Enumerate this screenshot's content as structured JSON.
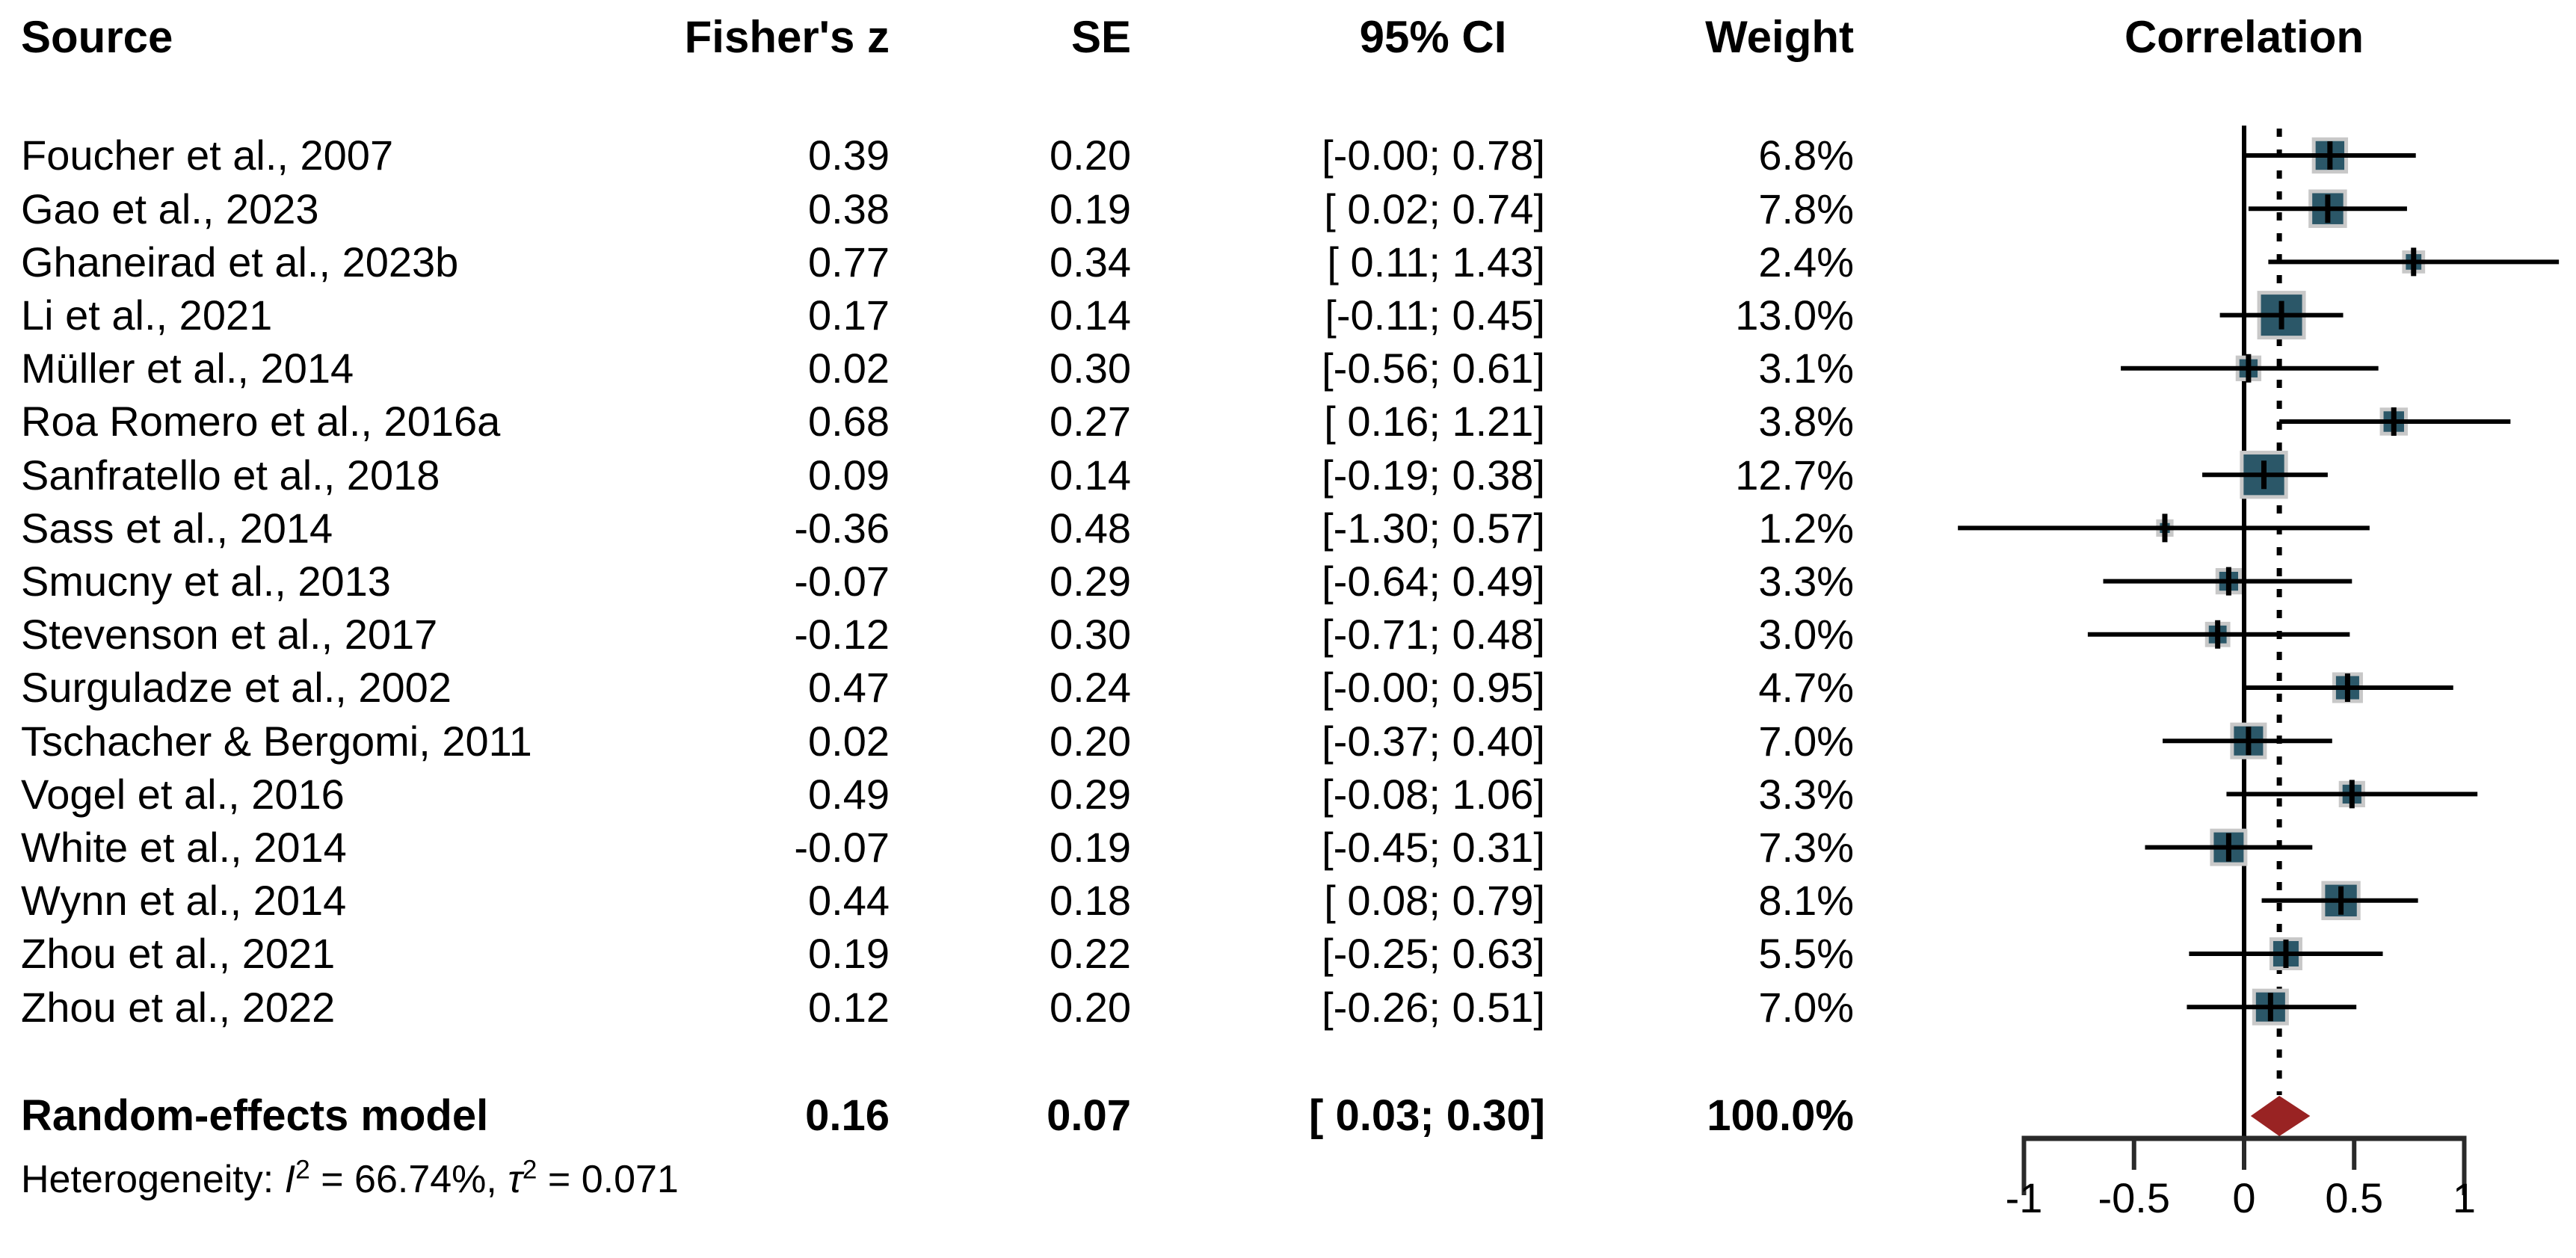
{
  "table": {
    "columns": {
      "source": "Source",
      "fishers_z": "Fisher's z",
      "se": "SE",
      "ci": "95% CI",
      "weight": "Weight",
      "plot": "Correlation"
    },
    "rows": [
      {
        "source": "Foucher et al., 2007",
        "fishers_z": "0.39",
        "se": "0.20",
        "ci": "[-0.00; 0.78]",
        "weight": "6.8%"
      },
      {
        "source": "Gao et al., 2023",
        "fishers_z": "0.38",
        "se": "0.19",
        "ci": "[ 0.02; 0.74]",
        "weight": "7.8%"
      },
      {
        "source": "Ghaneirad et al., 2023b",
        "fishers_z": "0.77",
        "se": "0.34",
        "ci": "[ 0.11; 1.43]",
        "weight": "2.4%"
      },
      {
        "source": "Li et al., 2021",
        "fishers_z": "0.17",
        "se": "0.14",
        "ci": "[-0.11; 0.45]",
        "weight": "13.0%"
      },
      {
        "source": "Müller et al., 2014",
        "fishers_z": "0.02",
        "se": "0.30",
        "ci": "[-0.56; 0.61]",
        "weight": "3.1%"
      },
      {
        "source": "Roa Romero et al., 2016a",
        "fishers_z": "0.68",
        "se": "0.27",
        "ci": "[ 0.16; 1.21]",
        "weight": "3.8%"
      },
      {
        "source": "Sanfratello et al., 2018",
        "fishers_z": "0.09",
        "se": "0.14",
        "ci": "[-0.19; 0.38]",
        "weight": "12.7%"
      },
      {
        "source": "Sass et al., 2014",
        "fishers_z": "-0.36",
        "se": "0.48",
        "ci": "[-1.30; 0.57]",
        "weight": "1.2%"
      },
      {
        "source": "Smucny et al., 2013",
        "fishers_z": "-0.07",
        "se": "0.29",
        "ci": "[-0.64; 0.49]",
        "weight": "3.3%"
      },
      {
        "source": "Stevenson et al., 2017",
        "fishers_z": "-0.12",
        "se": "0.30",
        "ci": "[-0.71; 0.48]",
        "weight": "3.0%"
      },
      {
        "source": "Surguladze et al., 2002",
        "fishers_z": "0.47",
        "se": "0.24",
        "ci": "[-0.00; 0.95]",
        "weight": "4.7%"
      },
      {
        "source": "Tschacher & Bergomi, 2011",
        "fishers_z": "0.02",
        "se": "0.20",
        "ci": "[-0.37; 0.40]",
        "weight": "7.0%"
      },
      {
        "source": "Vogel et al., 2016",
        "fishers_z": "0.49",
        "se": "0.29",
        "ci": "[-0.08; 1.06]",
        "weight": "3.3%"
      },
      {
        "source": "White et al., 2014",
        "fishers_z": "-0.07",
        "se": "0.19",
        "ci": "[-0.45; 0.31]",
        "weight": "7.3%"
      },
      {
        "source": "Wynn et al., 2014",
        "fishers_z": "0.44",
        "se": "0.18",
        "ci": "[ 0.08; 0.79]",
        "weight": "8.1%"
      },
      {
        "source": "Zhou et al., 2021",
        "fishers_z": "0.19",
        "se": "0.22",
        "ci": "[-0.25; 0.63]",
        "weight": "5.5%"
      },
      {
        "source": "Zhou et al., 2022",
        "fishers_z": "0.12",
        "se": "0.20",
        "ci": "[-0.26; 0.51]",
        "weight": "7.0%"
      }
    ],
    "summary": {
      "source": "Random-effects model",
      "fishers_z": "0.16",
      "se": "0.07",
      "ci": "[ 0.03; 0.30]",
      "weight": "100.0%"
    },
    "heterogeneity": {
      "prefix": "Heterogeneity: ",
      "i_sym": "I",
      "i_sup": "2",
      "mid": " = 66.74%, ",
      "tau_sym": "τ",
      "tau_sup": "2",
      "suffix": " = 0.071"
    }
  },
  "chart_data": {
    "type": "scatter",
    "subtype": "forest-plot",
    "title": "Correlation",
    "xlabel": "",
    "ylabel": "",
    "x_axis": {
      "range": [
        -1,
        1
      ],
      "ticks": [
        -1,
        -0.5,
        0,
        0.5,
        1
      ],
      "tick_labels": [
        "-1",
        "-0.5",
        "0",
        "0.5",
        "1"
      ]
    },
    "reference_line": 0,
    "pooled_estimate_line": 0.16,
    "studies": [
      {
        "label": "Foucher et al., 2007",
        "z": 0.39,
        "lo": -0.0,
        "hi": 0.78,
        "weight": 6.8
      },
      {
        "label": "Gao et al., 2023",
        "z": 0.38,
        "lo": 0.02,
        "hi": 0.74,
        "weight": 7.8
      },
      {
        "label": "Ghaneirad et al., 2023b",
        "z": 0.77,
        "lo": 0.11,
        "hi": 1.43,
        "weight": 2.4
      },
      {
        "label": "Li et al., 2021",
        "z": 0.17,
        "lo": -0.11,
        "hi": 0.45,
        "weight": 13.0
      },
      {
        "label": "Müller et al., 2014",
        "z": 0.02,
        "lo": -0.56,
        "hi": 0.61,
        "weight": 3.1
      },
      {
        "label": "Roa Romero et al., 2016a",
        "z": 0.68,
        "lo": 0.16,
        "hi": 1.21,
        "weight": 3.8
      },
      {
        "label": "Sanfratello et al., 2018",
        "z": 0.09,
        "lo": -0.19,
        "hi": 0.38,
        "weight": 12.7
      },
      {
        "label": "Sass et al., 2014",
        "z": -0.36,
        "lo": -1.3,
        "hi": 0.57,
        "weight": 1.2
      },
      {
        "label": "Smucny et al., 2013",
        "z": -0.07,
        "lo": -0.64,
        "hi": 0.49,
        "weight": 3.3
      },
      {
        "label": "Stevenson et al., 2017",
        "z": -0.12,
        "lo": -0.71,
        "hi": 0.48,
        "weight": 3.0
      },
      {
        "label": "Surguladze et al., 2002",
        "z": 0.47,
        "lo": -0.0,
        "hi": 0.95,
        "weight": 4.7
      },
      {
        "label": "Tschacher & Bergomi, 2011",
        "z": 0.02,
        "lo": -0.37,
        "hi": 0.4,
        "weight": 7.0
      },
      {
        "label": "Vogel et al., 2016",
        "z": 0.49,
        "lo": -0.08,
        "hi": 1.06,
        "weight": 3.3
      },
      {
        "label": "White et al., 2014",
        "z": -0.07,
        "lo": -0.45,
        "hi": 0.31,
        "weight": 7.3
      },
      {
        "label": "Wynn et al., 2014",
        "z": 0.44,
        "lo": 0.08,
        "hi": 0.79,
        "weight": 8.1
      },
      {
        "label": "Zhou et al., 2021",
        "z": 0.19,
        "lo": -0.25,
        "hi": 0.63,
        "weight": 5.5
      },
      {
        "label": "Zhou et al., 2022",
        "z": 0.12,
        "lo": -0.26,
        "hi": 0.51,
        "weight": 7.0
      }
    ],
    "summary": {
      "label": "Random-effects model",
      "z": 0.16,
      "lo": 0.03,
      "hi": 0.3,
      "weight": 100.0
    },
    "heterogeneity": {
      "I2": "66.74%",
      "tau2": "0.071"
    },
    "colors": {
      "square": "#2b5768",
      "square_border": "#c8c8c8",
      "diamond": "#992323",
      "line": "#000000",
      "axis": "#2a2a2a",
      "text": "#000000"
    },
    "legend_position": "none",
    "grid": false
  }
}
